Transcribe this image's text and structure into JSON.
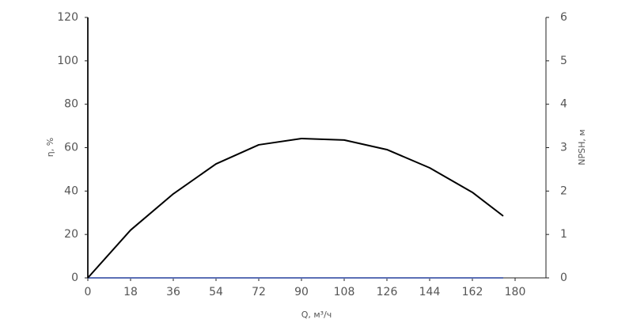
{
  "chart_data": {
    "type": "line",
    "x_label": "Q, м³/ч",
    "y_label": "η, %",
    "y2_label": "NPSH, м",
    "x": [
      0,
      18,
      36,
      54,
      72,
      90,
      108,
      126,
      144,
      162,
      175
    ],
    "series": [
      {
        "name": "η",
        "color": "#000000",
        "values": [
          0,
          22,
          38.7,
          52.5,
          61.3,
          64.2,
          63.5,
          59.1,
          50.7,
          39.4,
          28.5
        ]
      },
      {
        "name": "NPSH",
        "color": "#5b6fb5",
        "axis": "y2",
        "values": [
          0,
          0,
          0,
          0,
          0,
          0,
          0,
          0,
          0,
          0,
          0
        ]
      }
    ],
    "xlim": [
      0,
      193
    ],
    "xticks": [
      0,
      18,
      36,
      54,
      72,
      90,
      108,
      126,
      144,
      162,
      180
    ],
    "ylim": [
      0,
      120
    ],
    "yticks": [
      0,
      20,
      40,
      60,
      80,
      100,
      120
    ],
    "y2lim": [
      0,
      6
    ],
    "y2ticks": [
      0,
      1,
      2,
      3,
      4,
      5,
      6
    ],
    "grid": false
  }
}
